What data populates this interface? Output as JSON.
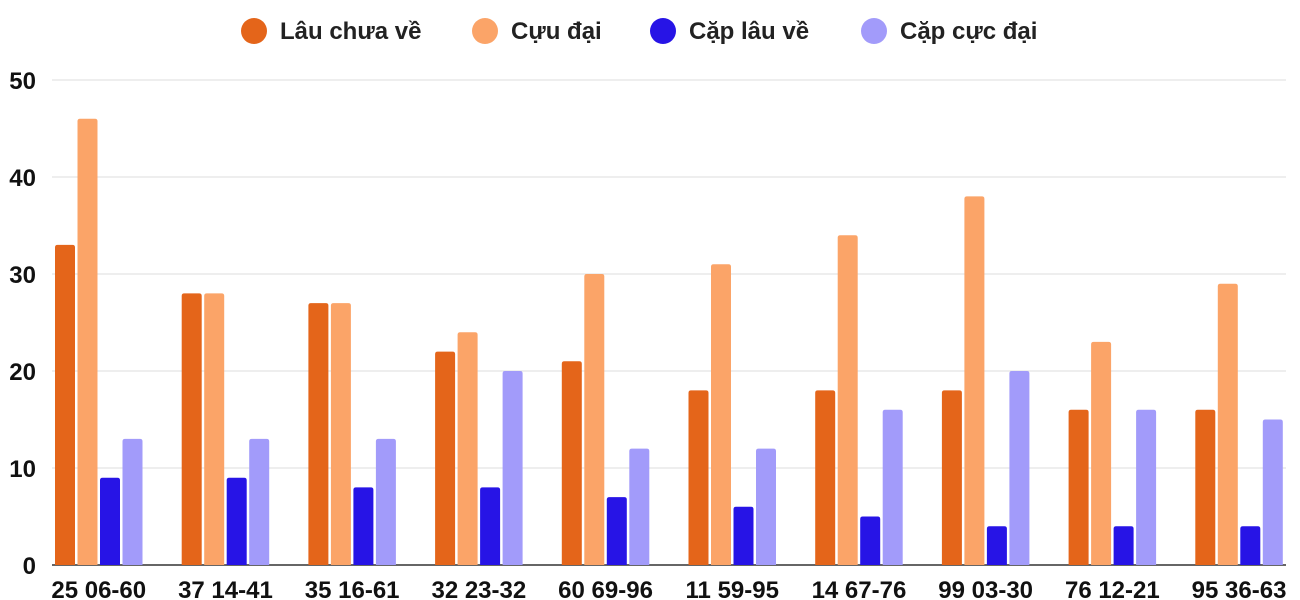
{
  "chart_data": {
    "type": "bar",
    "categories": [
      "25 06-60",
      "37 14-41",
      "35 16-61",
      "32 23-32",
      "60 69-96",
      "11 59-95",
      "14 67-76",
      "99 03-30",
      "76 12-21",
      "95 36-63"
    ],
    "series": [
      {
        "name": "Lâu chưa về",
        "color": "#E4651A",
        "values": [
          33,
          28,
          27,
          22,
          21,
          18,
          18,
          18,
          16,
          16
        ]
      },
      {
        "name": "Cựu đại",
        "color": "#FBA468",
        "values": [
          46,
          28,
          27,
          24,
          30,
          31,
          34,
          38,
          23,
          29
        ]
      },
      {
        "name": "Cặp lâu về",
        "color": "#2714E6",
        "values": [
          9,
          9,
          8,
          8,
          7,
          6,
          5,
          4,
          4,
          4
        ]
      },
      {
        "name": "Cặp cực đại",
        "color": "#A29BFA",
        "values": [
          13,
          13,
          13,
          20,
          12,
          12,
          16,
          20,
          16,
          15
        ]
      }
    ],
    "title": "",
    "xlabel": "",
    "ylabel": "",
    "ylim": [
      0,
      50
    ],
    "yticks": [
      0,
      10,
      20,
      30,
      40,
      50
    ],
    "grid": true,
    "legend_position": "top"
  }
}
